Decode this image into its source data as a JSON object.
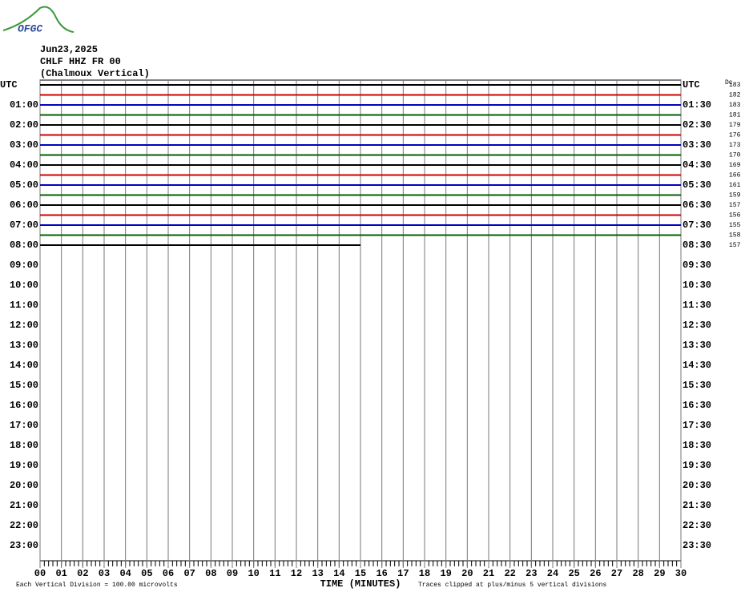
{
  "chart_data": {
    "type": "helicorder",
    "logo": "OFGC",
    "title_lines": [
      "Jun23,2025",
      "CHLF HHZ FR 00",
      "(Chalmoux Vertical)"
    ],
    "x_label": "TIME (MINUTES)",
    "notes": [
      "Each Vertical Division =  100.00 microvolts",
      "Traces clipped at plus/minus 5 vertical divisions"
    ],
    "dc_label": "Dc",
    "xlim": [
      0,
      30
    ],
    "xticks": [
      {
        "value": 0,
        "label": "00"
      },
      {
        "value": 1,
        "label": "01"
      },
      {
        "value": 2,
        "label": "02"
      },
      {
        "value": 3,
        "label": "03"
      },
      {
        "value": 4,
        "label": "04"
      },
      {
        "value": 5,
        "label": "05"
      },
      {
        "value": 6,
        "label": "06"
      },
      {
        "value": 7,
        "label": "07"
      },
      {
        "value": 8,
        "label": "08"
      },
      {
        "value": 9,
        "label": "09"
      },
      10,
      11,
      12,
      13,
      14,
      15,
      16,
      17,
      18,
      19,
      20,
      21,
      22,
      23,
      24,
      25,
      26,
      27,
      28,
      29,
      30
    ],
    "row_count": 48,
    "left_labels": [
      "UTC",
      "01:00",
      "02:00",
      "03:00",
      "04:00",
      "05:00",
      "06:00",
      "07:00",
      "08:00",
      "09:00",
      "10:00",
      "11:00",
      "12:00",
      "13:00",
      "14:00",
      "15:00",
      "16:00",
      "17:00",
      "18:00",
      "19:00",
      "20:00",
      "21:00",
      "22:00",
      "23:00"
    ],
    "right_labels": [
      "UTC",
      "01:30",
      "02:30",
      "03:30",
      "04:30",
      "05:30",
      "06:30",
      "07:30",
      "08:30",
      "09:30",
      "10:30",
      "11:30",
      "12:30",
      "13:30",
      "14:30",
      "15:30",
      "16:30",
      "17:30",
      "18:30",
      "19:30",
      "20:30",
      "21:30",
      "22:30",
      "23:30"
    ],
    "traces": [
      {
        "color": "#000000",
        "end": 30,
        "dc": 183
      },
      {
        "color": "#d00000",
        "end": 30,
        "dc": 182
      },
      {
        "color": "#0000c0",
        "end": 30,
        "dc": 183
      },
      {
        "color": "#006000",
        "end": 30,
        "dc": 181
      },
      {
        "color": "#000000",
        "end": 30,
        "dc": 179
      },
      {
        "color": "#d00000",
        "end": 30,
        "dc": 176
      },
      {
        "color": "#0000c0",
        "end": 30,
        "dc": 173
      },
      {
        "color": "#006000",
        "end": 30,
        "dc": 170
      },
      {
        "color": "#000000",
        "end": 30,
        "dc": 169
      },
      {
        "color": "#d00000",
        "end": 30,
        "dc": 166
      },
      {
        "color": "#0000c0",
        "end": 30,
        "dc": 161
      },
      {
        "color": "#006000",
        "end": 30,
        "dc": 159
      },
      {
        "color": "#000000",
        "end": 30,
        "dc": 157
      },
      {
        "color": "#d00000",
        "end": 30,
        "dc": 156
      },
      {
        "color": "#0000c0",
        "end": 30,
        "dc": 155
      },
      {
        "color": "#006000",
        "end": 30,
        "dc": 158
      },
      {
        "color": "#000000",
        "end": 15,
        "dc": 157
      }
    ]
  }
}
